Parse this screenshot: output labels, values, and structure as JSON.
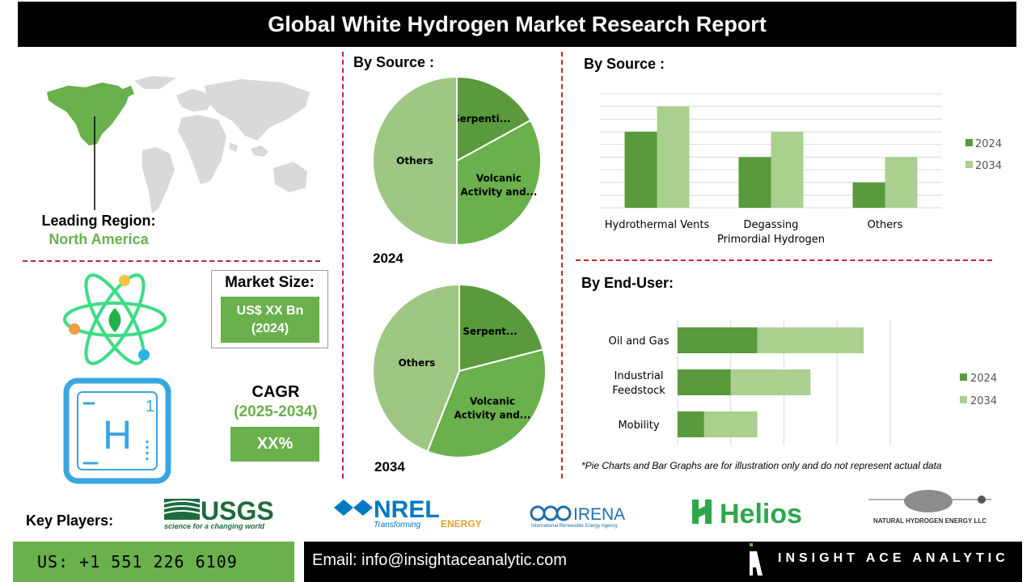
{
  "header": {
    "title": "Global White Hydrogen Market Research Report"
  },
  "region": {
    "label": "Leading Region:",
    "value": "North America"
  },
  "market_size": {
    "label": "Market Size:",
    "value_line1": "US$ XX Bn",
    "value_line2": "(2024)"
  },
  "cagr": {
    "label": "CAGR",
    "years": "(2025-2034)",
    "value": "XX%"
  },
  "element_tile": {
    "symbol": "H",
    "number": "1"
  },
  "pie_section": {
    "title": "By Source :",
    "year_2024": "2024",
    "year_2034": "2034"
  },
  "bar_source_title": "By  Source :",
  "end_user_title": "By End-User:",
  "note": "*Pie Charts and Bar Graphs are for illustration only and do not represent actual data",
  "key_players": {
    "label": "Key Players:",
    "usgs": "USGS",
    "usgs_tagline": "science for a changing world",
    "nrel": "NREL",
    "nrel_tagline_1": "Transforming",
    "nrel_tagline_2": "ENERGY",
    "irena": "IRENA",
    "irena_tagline": "International Renewable Energy Agency",
    "helios": "Helios",
    "nhe": "NATURAL HYDROGEN ENERGY LLC"
  },
  "footer": {
    "phone": "US: +1 551 226 6109",
    "email": "Email: info@insightaceanalytic.com",
    "brand": "INSIGHT ACE ANALYTIC"
  },
  "colors": {
    "dark_green": "#5a9a3c",
    "mid_green": "#6ab04c",
    "light_green": "#9dc783",
    "pale_green": "#a9d08e",
    "accent_red": "#c0282d"
  },
  "chart_data": [
    {
      "type": "pie",
      "title": "2024",
      "slices": [
        {
          "label": "Serpenti...",
          "value": 17,
          "color": "#5a9a3c"
        },
        {
          "label": "Volcanic Activity and...",
          "value": 33,
          "color": "#6ab04c"
        },
        {
          "label": "Others",
          "value": 50,
          "color": "#9dc783"
        }
      ]
    },
    {
      "type": "pie",
      "title": "2034",
      "slices": [
        {
          "label": "Serpent...",
          "value": 21,
          "color": "#5a9a3c"
        },
        {
          "label": "Volcanic Activity and...",
          "value": 35,
          "color": "#6ab04c"
        },
        {
          "label": "Others",
          "value": 44,
          "color": "#9dc783"
        }
      ]
    },
    {
      "type": "bar",
      "orientation": "vertical",
      "categories": [
        "Hydrothermal Vents",
        "Degassing Primordial Hydrogen",
        "Others"
      ],
      "series": [
        {
          "name": "2024",
          "values": [
            3,
            2,
            1
          ],
          "color": "#5a9a3c"
        },
        {
          "name": "2034",
          "values": [
            4,
            3,
            2
          ],
          "color": "#a9d08e"
        }
      ],
      "ylim": [
        0,
        4.5
      ],
      "grid": true,
      "legend": "right"
    },
    {
      "type": "bar",
      "orientation": "horizontal",
      "stacked": true,
      "categories": [
        "Oil and Gas",
        "Industrial Feedstock",
        "Mobility"
      ],
      "series": [
        {
          "name": "2024",
          "values": [
            3,
            2,
            1
          ],
          "color": "#5a9a3c"
        },
        {
          "name": "2034",
          "values": [
            4,
            3,
            2
          ],
          "color": "#a9d08e"
        }
      ],
      "xlim": [
        0,
        8
      ],
      "grid": true,
      "legend": "right"
    }
  ]
}
